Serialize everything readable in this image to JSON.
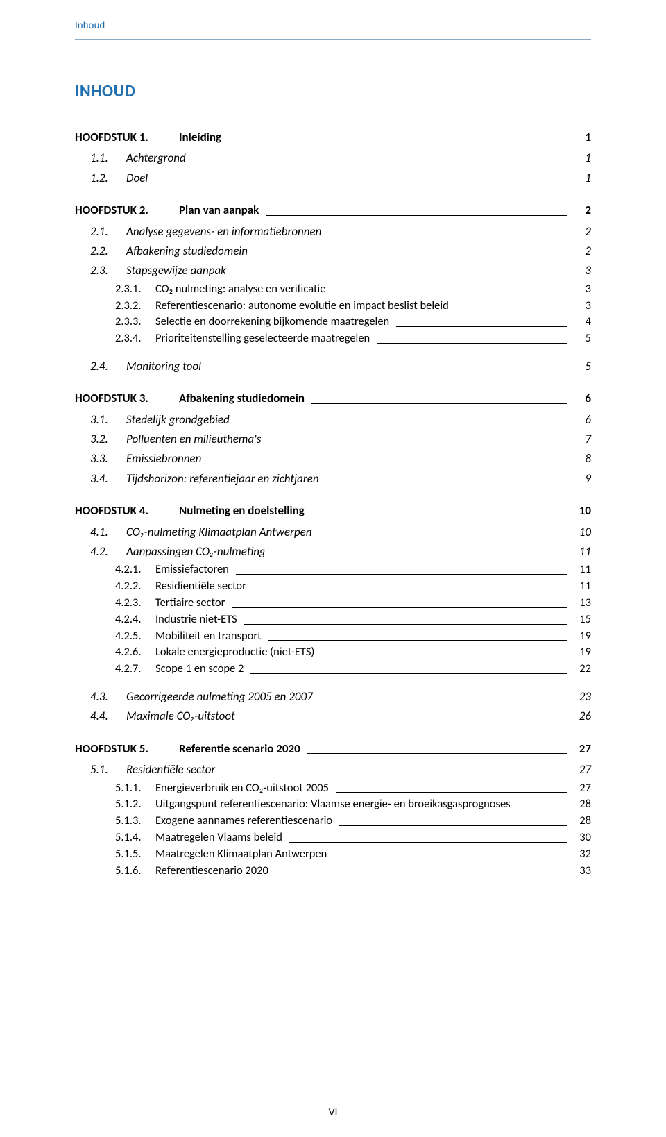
{
  "running_head": "Inhoud",
  "doc_title": "INHOUD",
  "footer_page": "VI",
  "entries": [
    {
      "level": 1,
      "num": "HOOFDSTUK 1.",
      "label": "Inleiding",
      "page": "1",
      "leader": true
    },
    {
      "level": 2,
      "num": "1.1.",
      "label": "Achtergrond",
      "page": "1",
      "leader": false
    },
    {
      "level": 2,
      "num": "1.2.",
      "label": "Doel",
      "page": "1",
      "leader": false
    },
    {
      "level": 1,
      "num": "HOOFDSTUK 2.",
      "label": "Plan van aanpak",
      "page": "2",
      "leader": true
    },
    {
      "level": 2,
      "num": "2.1.",
      "label": "Analyse gegevens- en informatiebronnen",
      "page": "2",
      "leader": false
    },
    {
      "level": 2,
      "num": "2.2.",
      "label": "Afbakening studiedomein",
      "page": "2",
      "leader": false
    },
    {
      "level": 2,
      "num": "2.3.",
      "label": "Stapsgewijze aanpak",
      "page": "3",
      "leader": false
    },
    {
      "level": 3,
      "num": "2.3.1.",
      "label": "CO₂ nulmeting: analyse en verificatie",
      "page": "3",
      "leader": true
    },
    {
      "level": 3,
      "num": "2.3.2.",
      "label": "Referentiescenario: autonome evolutie en impact beslist beleid",
      "page": "3",
      "leader": true
    },
    {
      "level": 3,
      "num": "2.3.3.",
      "label": "Selectie en doorrekening bijkomende maatregelen",
      "page": "4",
      "leader": true
    },
    {
      "level": 3,
      "num": "2.3.4.",
      "label": "Prioriteitenstelling geselecteerde maatregelen",
      "page": "5",
      "leader": true
    },
    {
      "level": 2,
      "num": "2.4.",
      "label": "Monitoring tool",
      "page": "5",
      "leader": false
    },
    {
      "level": 1,
      "num": "HOOFDSTUK 3.",
      "label": "Afbakening studiedomein",
      "page": "6",
      "leader": true
    },
    {
      "level": 2,
      "num": "3.1.",
      "label": "Stedelijk grondgebied",
      "page": "6",
      "leader": false
    },
    {
      "level": 2,
      "num": "3.2.",
      "label": "Polluenten en milieuthema's",
      "page": "7",
      "leader": false
    },
    {
      "level": 2,
      "num": "3.3.",
      "label": "Emissiebronnen",
      "page": "8",
      "leader": false
    },
    {
      "level": 2,
      "num": "3.4.",
      "label": "Tijdshorizon: referentiejaar en zichtjaren",
      "page": "9",
      "leader": false
    },
    {
      "level": 1,
      "num": "HOOFDSTUK 4.",
      "label": "Nulmeting en doelstelling",
      "page": "10",
      "leader": true
    },
    {
      "level": 2,
      "num": "4.1.",
      "label": "CO₂-nulmeting Klimaatplan Antwerpen",
      "page": "10",
      "leader": false
    },
    {
      "level": 2,
      "num": "4.2.",
      "label": "Aanpassingen CO₂-nulmeting",
      "page": "11",
      "leader": false
    },
    {
      "level": 3,
      "num": "4.2.1.",
      "label": "Emissiefactoren",
      "page": "11",
      "leader": true
    },
    {
      "level": 3,
      "num": "4.2.2.",
      "label": "Residientiële sector",
      "page": "11",
      "leader": true
    },
    {
      "level": 3,
      "num": "4.2.3.",
      "label": "Tertiaire sector",
      "page": "13",
      "leader": true
    },
    {
      "level": 3,
      "num": "4.2.4.",
      "label": "Industrie niet-ETS",
      "page": "15",
      "leader": true
    },
    {
      "level": 3,
      "num": "4.2.5.",
      "label": "Mobiliteit en transport",
      "page": "19",
      "leader": true
    },
    {
      "level": 3,
      "num": "4.2.6.",
      "label": "Lokale energieproductie (niet-ETS)",
      "page": "19",
      "leader": true
    },
    {
      "level": 3,
      "num": "4.2.7.",
      "label": "Scope 1 en scope 2",
      "page": "22",
      "leader": true
    },
    {
      "level": 2,
      "num": "4.3.",
      "label": "Gecorrigeerde nulmeting 2005 en 2007",
      "page": "23",
      "leader": false
    },
    {
      "level": 2,
      "num": "4.4.",
      "label": "Maximale CO₂-uitstoot",
      "page": "26",
      "leader": false
    },
    {
      "level": 1,
      "num": "HOOFDSTUK 5.",
      "label": "Referentie scenario 2020",
      "page": "27",
      "leader": true
    },
    {
      "level": 2,
      "num": "5.1.",
      "label": "Residentiële sector",
      "page": "27",
      "leader": false
    },
    {
      "level": 3,
      "num": "5.1.1.",
      "label": "Energieverbruik en CO₂-uitstoot 2005",
      "page": "27",
      "leader": true
    },
    {
      "level": 3,
      "num": "5.1.2.",
      "label": "Uitgangspunt referentiescenario: Vlaamse energie- en broeikasgasprognoses",
      "page": "28",
      "leader": true
    },
    {
      "level": 3,
      "num": "5.1.3.",
      "label": "Exogene aannames referentiescenario",
      "page": "28",
      "leader": true
    },
    {
      "level": 3,
      "num": "5.1.4.",
      "label": "Maatregelen Vlaams beleid",
      "page": "30",
      "leader": true
    },
    {
      "level": 3,
      "num": "5.1.5.",
      "label": "Maatregelen Klimaatplan Antwerpen",
      "page": "32",
      "leader": true
    },
    {
      "level": 3,
      "num": "5.1.6.",
      "label": "Referentiescenario 2020",
      "page": "33",
      "leader": true
    }
  ]
}
